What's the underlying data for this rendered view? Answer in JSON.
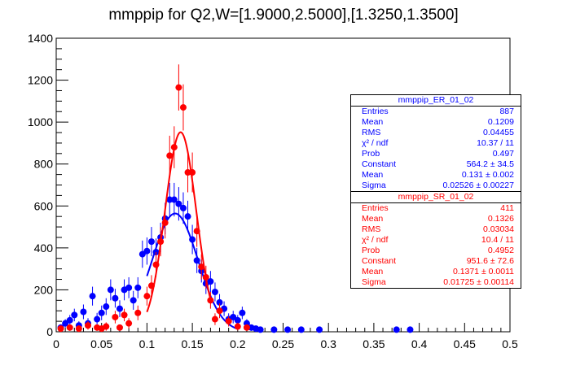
{
  "title": "mmppip for Q2,W=[1.9000,2.5000],[1.3250,1.3500]",
  "colors": {
    "blue": "#0000ff",
    "red": "#ff0000",
    "axis": "#000000",
    "background": "#ffffff"
  },
  "stats_blue": {
    "name": "mmppip_ER_01_02",
    "rows": [
      {
        "label": "Entries",
        "value": "887"
      },
      {
        "label": "Mean",
        "value": "0.1209"
      },
      {
        "label": "RMS",
        "value": "0.04455"
      },
      {
        "label": "χ² / ndf",
        "value": "10.37 / 11"
      },
      {
        "label": "Prob",
        "value": "0.497"
      },
      {
        "label": "Constant",
        "value": "564.2 ± 34.5"
      },
      {
        "label": "Mean",
        "value": "0.131 ± 0.002"
      },
      {
        "label": "Sigma",
        "value": "0.02526 ± 0.00227"
      }
    ]
  },
  "stats_red": {
    "name": "mmppip_SR_01_02",
    "rows": [
      {
        "label": "Entries",
        "value": "411"
      },
      {
        "label": "Mean",
        "value": "0.1326"
      },
      {
        "label": "RMS",
        "value": "0.03034"
      },
      {
        "label": "χ² / ndf",
        "value": "10.4 / 11"
      },
      {
        "label": "Prob",
        "value": "0.4952"
      },
      {
        "label": "Constant",
        "value": "951.6 ± 72.6"
      },
      {
        "label": "Mean",
        "value": "0.1371 ± 0.0011"
      },
      {
        "label": "Sigma",
        "value": "0.01725 ± 0.00114"
      }
    ]
  },
  "chart_data": {
    "type": "scatter",
    "title": "mmppip for Q2,W=[1.9000,2.5000],[1.3250,1.3500]",
    "xlabel": "",
    "ylabel": "",
    "xlim": [
      0,
      0.5
    ],
    "ylim": [
      0,
      1400
    ],
    "xticks": [
      "0",
      "0.05",
      "0.1",
      "0.15",
      "0.2",
      "0.25",
      "0.3",
      "0.35",
      "0.4",
      "0.45",
      "0.5"
    ],
    "yticks": [
      "0",
      "200",
      "400",
      "600",
      "800",
      "1000",
      "1200",
      "1400"
    ],
    "grid": false,
    "series": [
      {
        "name": "mmppip_ER_01_02",
        "color": "#0000ff",
        "points": [
          {
            "x": 0.005,
            "y": 20,
            "err": 15
          },
          {
            "x": 0.01,
            "y": 40,
            "err": 20
          },
          {
            "x": 0.015,
            "y": 55,
            "err": 25
          },
          {
            "x": 0.02,
            "y": 80,
            "err": 30
          },
          {
            "x": 0.025,
            "y": 30,
            "err": 20
          },
          {
            "x": 0.03,
            "y": 95,
            "err": 35
          },
          {
            "x": 0.035,
            "y": 40,
            "err": 25
          },
          {
            "x": 0.04,
            "y": 170,
            "err": 45
          },
          {
            "x": 0.045,
            "y": 60,
            "err": 30
          },
          {
            "x": 0.05,
            "y": 90,
            "err": 35
          },
          {
            "x": 0.055,
            "y": 120,
            "err": 40
          },
          {
            "x": 0.06,
            "y": 200,
            "err": 50
          },
          {
            "x": 0.065,
            "y": 160,
            "err": 45
          },
          {
            "x": 0.07,
            "y": 110,
            "err": 40
          },
          {
            "x": 0.075,
            "y": 200,
            "err": 50
          },
          {
            "x": 0.08,
            "y": 210,
            "err": 50
          },
          {
            "x": 0.085,
            "y": 150,
            "err": 45
          },
          {
            "x": 0.09,
            "y": 210,
            "err": 50
          },
          {
            "x": 0.095,
            "y": 370,
            "err": 65
          },
          {
            "x": 0.1,
            "y": 385,
            "err": 65
          },
          {
            "x": 0.105,
            "y": 430,
            "err": 70
          },
          {
            "x": 0.11,
            "y": 380,
            "err": 65
          },
          {
            "x": 0.115,
            "y": 450,
            "err": 70
          },
          {
            "x": 0.12,
            "y": 540,
            "err": 75
          },
          {
            "x": 0.125,
            "y": 630,
            "err": 80
          },
          {
            "x": 0.13,
            "y": 630,
            "err": 80
          },
          {
            "x": 0.135,
            "y": 610,
            "err": 80
          },
          {
            "x": 0.14,
            "y": 590,
            "err": 75
          },
          {
            "x": 0.145,
            "y": 550,
            "err": 75
          },
          {
            "x": 0.15,
            "y": 440,
            "err": 70
          },
          {
            "x": 0.155,
            "y": 340,
            "err": 60
          },
          {
            "x": 0.16,
            "y": 290,
            "err": 55
          },
          {
            "x": 0.165,
            "y": 230,
            "err": 50
          },
          {
            "x": 0.17,
            "y": 240,
            "err": 50
          },
          {
            "x": 0.175,
            "y": 190,
            "err": 45
          },
          {
            "x": 0.18,
            "y": 140,
            "err": 40
          },
          {
            "x": 0.185,
            "y": 110,
            "err": 35
          },
          {
            "x": 0.19,
            "y": 60,
            "err": 28
          },
          {
            "x": 0.195,
            "y": 70,
            "err": 30
          },
          {
            "x": 0.2,
            "y": 55,
            "err": 25
          },
          {
            "x": 0.205,
            "y": 90,
            "err": 30
          },
          {
            "x": 0.21,
            "y": 40,
            "err": 20
          },
          {
            "x": 0.215,
            "y": 20,
            "err": 15
          },
          {
            "x": 0.22,
            "y": 15,
            "err": 12
          },
          {
            "x": 0.225,
            "y": 10,
            "err": 10
          },
          {
            "x": 0.24,
            "y": 10,
            "err": 10
          },
          {
            "x": 0.255,
            "y": 10,
            "err": 10
          },
          {
            "x": 0.27,
            "y": 10,
            "err": 10
          },
          {
            "x": 0.29,
            "y": 10,
            "err": 10
          },
          {
            "x": 0.375,
            "y": 10,
            "err": 10
          },
          {
            "x": 0.39,
            "y": 10,
            "err": 10
          }
        ],
        "fit": {
          "type": "gaus",
          "constant": 564.2,
          "mean": 0.131,
          "sigma": 0.02526,
          "x_range": [
            0.1,
            0.2
          ]
        }
      },
      {
        "name": "mmppip_SR_01_02",
        "color": "#ff0000",
        "points": [
          {
            "x": 0.005,
            "y": 15,
            "err": 15
          },
          {
            "x": 0.015,
            "y": 20,
            "err": 15
          },
          {
            "x": 0.025,
            "y": 15,
            "err": 15
          },
          {
            "x": 0.035,
            "y": 30,
            "err": 20
          },
          {
            "x": 0.045,
            "y": 20,
            "err": 15
          },
          {
            "x": 0.05,
            "y": 15,
            "err": 15
          },
          {
            "x": 0.055,
            "y": 25,
            "err": 20
          },
          {
            "x": 0.065,
            "y": 70,
            "err": 30
          },
          {
            "x": 0.07,
            "y": 20,
            "err": 15
          },
          {
            "x": 0.075,
            "y": 80,
            "err": 30
          },
          {
            "x": 0.08,
            "y": 40,
            "err": 25
          },
          {
            "x": 0.09,
            "y": 90,
            "err": 35
          },
          {
            "x": 0.1,
            "y": 170,
            "err": 45
          },
          {
            "x": 0.105,
            "y": 220,
            "err": 50
          },
          {
            "x": 0.11,
            "y": 320,
            "err": 60
          },
          {
            "x": 0.115,
            "y": 430,
            "err": 70
          },
          {
            "x": 0.12,
            "y": 520,
            "err": 75
          },
          {
            "x": 0.125,
            "y": 840,
            "err": 95
          },
          {
            "x": 0.13,
            "y": 880,
            "err": 100
          },
          {
            "x": 0.135,
            "y": 1165,
            "err": 110
          },
          {
            "x": 0.14,
            "y": 1070,
            "err": 110
          },
          {
            "x": 0.145,
            "y": 760,
            "err": 95
          },
          {
            "x": 0.15,
            "y": 760,
            "err": 95
          },
          {
            "x": 0.155,
            "y": 480,
            "err": 75
          },
          {
            "x": 0.16,
            "y": 310,
            "err": 60
          },
          {
            "x": 0.165,
            "y": 260,
            "err": 55
          },
          {
            "x": 0.17,
            "y": 150,
            "err": 40
          },
          {
            "x": 0.175,
            "y": 60,
            "err": 28
          },
          {
            "x": 0.18,
            "y": 100,
            "err": 35
          },
          {
            "x": 0.19,
            "y": 50,
            "err": 25
          },
          {
            "x": 0.2,
            "y": 25,
            "err": 18
          },
          {
            "x": 0.21,
            "y": 20,
            "err": 15
          }
        ],
        "fit": {
          "type": "gaus",
          "constant": 951.6,
          "mean": 0.1371,
          "sigma": 0.01725,
          "x_range": [
            0.1,
            0.17
          ]
        }
      }
    ]
  }
}
